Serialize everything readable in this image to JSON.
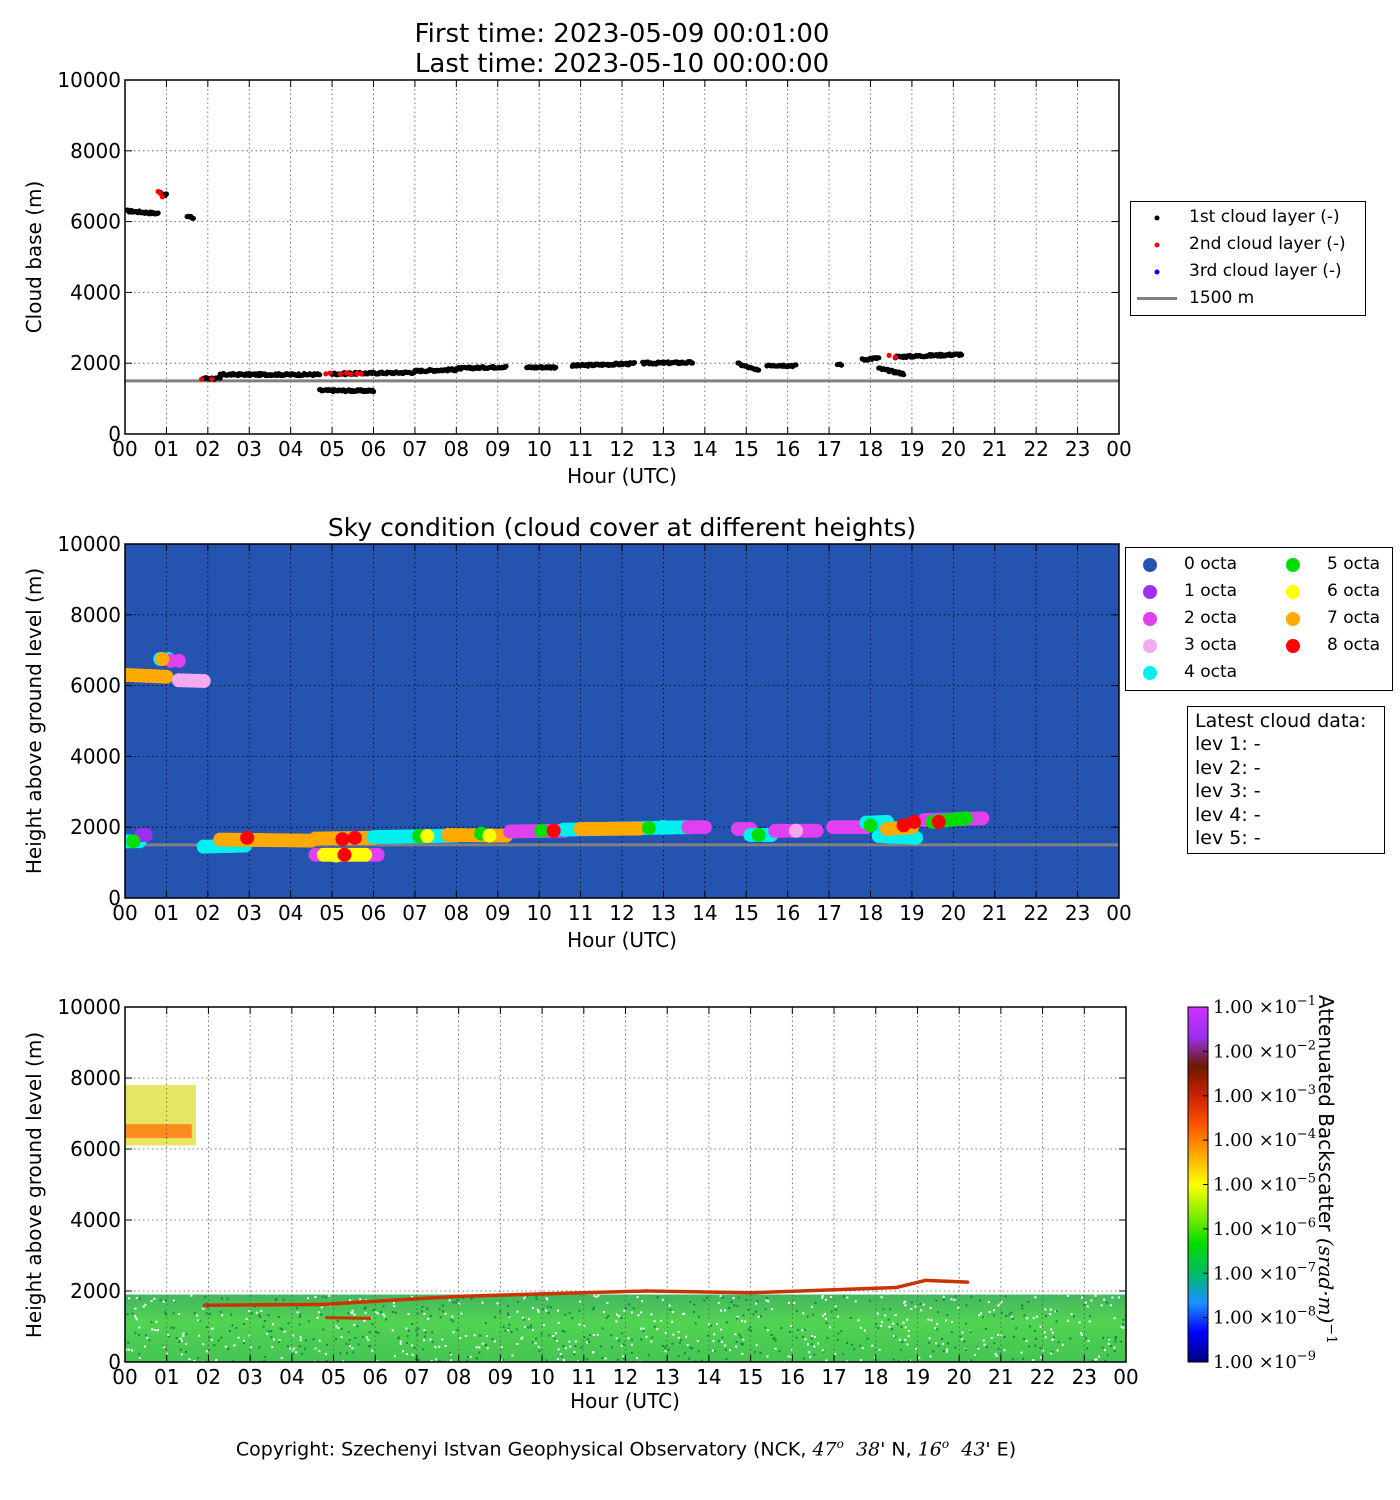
{
  "figure": {
    "title_line1": "First time: 2023-05-09 00:01:00",
    "title_line2": "Last time: 2023-05-10 00:00:00",
    "copyright": {
      "prefix": "Copyright: Szechenyi Istvan Geophysical Observatory (NCK, ",
      "lat_deg": "47",
      "lat_min": "38",
      "lon_deg": "16",
      "lon_min": "43",
      "deg_sym": "o",
      "lat_suffix": "' N, ",
      "lon_suffix": "' E)"
    }
  },
  "latest": {
    "title": "Latest cloud data:",
    "lines": [
      "lev 1: -",
      "lev 2: -",
      "lev 3: -",
      "lev 4: -",
      "lev 5: -"
    ]
  },
  "chart_data": [
    {
      "type": "scatter",
      "title": "",
      "xlabel": "Hour (UTC)",
      "ylabel": "Cloud base (m)",
      "x_ticks": [
        "00",
        "01",
        "02",
        "03",
        "04",
        "05",
        "06",
        "07",
        "08",
        "09",
        "10",
        "11",
        "12",
        "13",
        "14",
        "15",
        "16",
        "17",
        "18",
        "19",
        "20",
        "21",
        "22",
        "23",
        "00"
      ],
      "xlim": [
        0,
        24
      ],
      "ylim": [
        0,
        10000
      ],
      "y_ticks": [
        0,
        2000,
        4000,
        6000,
        8000,
        10000
      ],
      "grid": true,
      "legend_position": "right",
      "reference_line": {
        "name": "1500 m",
        "y": 1500,
        "color": "#808080"
      },
      "series": [
        {
          "name": "1st cloud layer (-)",
          "color": "#000000",
          "segments": [
            {
              "x0": 0.05,
              "x1": 0.8,
              "y0": 6300,
              "y1": 6230
            },
            {
              "x0": 0.85,
              "x1": 1.0,
              "y0": 6820,
              "y1": 6750
            },
            {
              "x0": 1.5,
              "x1": 1.65,
              "y0": 6150,
              "y1": 6100
            },
            {
              "x0": 1.9,
              "x1": 2.3,
              "y0": 1580,
              "y1": 1560
            },
            {
              "x0": 2.3,
              "x1": 4.7,
              "y0": 1680,
              "y1": 1680
            },
            {
              "x0": 4.7,
              "x1": 6.0,
              "y0": 1230,
              "y1": 1220
            },
            {
              "x0": 5.0,
              "x1": 7.0,
              "y0": 1700,
              "y1": 1740
            },
            {
              "x0": 7.0,
              "x1": 8.0,
              "y0": 1780,
              "y1": 1820
            },
            {
              "x0": 8.0,
              "x1": 9.2,
              "y0": 1850,
              "y1": 1900
            },
            {
              "x0": 9.7,
              "x1": 10.4,
              "y0": 1880,
              "y1": 1890
            },
            {
              "x0": 10.8,
              "x1": 12.3,
              "y0": 1930,
              "y1": 1990
            },
            {
              "x0": 12.5,
              "x1": 13.7,
              "y0": 2000,
              "y1": 2020
            },
            {
              "x0": 14.8,
              "x1": 15.3,
              "y0": 1990,
              "y1": 1780
            },
            {
              "x0": 15.5,
              "x1": 16.2,
              "y0": 1950,
              "y1": 1930
            },
            {
              "x0": 17.2,
              "x1": 17.3,
              "y0": 1970,
              "y1": 1970
            },
            {
              "x0": 17.8,
              "x1": 18.2,
              "y0": 2100,
              "y1": 2150
            },
            {
              "x0": 18.2,
              "x1": 18.8,
              "y0": 1850,
              "y1": 1700
            },
            {
              "x0": 18.6,
              "x1": 20.2,
              "y0": 2180,
              "y1": 2250
            }
          ]
        },
        {
          "name": "2nd cloud layer (-)",
          "color": "#ff0000",
          "points": [
            [
              0.8,
              6850
            ],
            [
              0.85,
              6800
            ],
            [
              0.9,
              6700
            ],
            [
              1.85,
              1550
            ],
            [
              2.1,
              1550
            ],
            [
              4.85,
              1700
            ],
            [
              4.95,
              1720
            ],
            [
              5.2,
              1700
            ],
            [
              5.35,
              1730
            ],
            [
              5.45,
              1690
            ],
            [
              5.6,
              1710
            ],
            [
              5.7,
              1700
            ],
            [
              18.45,
              2220
            ],
            [
              18.6,
              2170
            ]
          ]
        },
        {
          "name": "3rd cloud layer (-)",
          "color": "#0000ff",
          "points": []
        }
      ]
    },
    {
      "type": "scatter",
      "title": "Sky condition (cloud cover at different heights)",
      "xlabel": "Hour (UTC)",
      "ylabel": "Height above ground level (m)",
      "x_ticks": [
        "00",
        "01",
        "02",
        "03",
        "04",
        "05",
        "06",
        "07",
        "08",
        "09",
        "10",
        "11",
        "12",
        "13",
        "14",
        "15",
        "16",
        "17",
        "18",
        "19",
        "20",
        "21",
        "22",
        "23",
        "00"
      ],
      "xlim": [
        0,
        24
      ],
      "ylim": [
        0,
        10000
      ],
      "y_ticks": [
        0,
        2000,
        4000,
        6000,
        8000,
        10000
      ],
      "background": "#2554b0",
      "grid": true,
      "legend_position": "right",
      "reference_line": {
        "y": 1500,
        "color": "#808080"
      },
      "categories": [
        {
          "name": "0 octa",
          "color": "#2554b0"
        },
        {
          "name": "1 octa",
          "color": "#9b30f0"
        },
        {
          "name": "2 octa",
          "color": "#e040f0"
        },
        {
          "name": "3 octa",
          "color": "#f5aaf0"
        },
        {
          "name": "4 octa",
          "color": "#00f0f0"
        },
        {
          "name": "5 octa",
          "color": "#00dd00"
        },
        {
          "name": "6 octa",
          "color": "#ffff00"
        },
        {
          "name": "7 octa",
          "color": "#ffaa00"
        },
        {
          "name": "8 octa",
          "color": "#ff0000"
        }
      ],
      "segments": [
        {
          "x0": 0.05,
          "x1": 0.35,
          "y0": 1600,
          "y1": 1600,
          "octa": "4 octa"
        },
        {
          "x0": 0.4,
          "x1": 0.5,
          "y0": 1780,
          "y1": 1780,
          "octa": "1 octa"
        },
        {
          "x0": 0.05,
          "x1": 1.0,
          "y0": 6300,
          "y1": 6250,
          "octa": "7 octa"
        },
        {
          "x0": 0.85,
          "x1": 1.05,
          "y0": 6750,
          "y1": 6750,
          "octa": "4 octa"
        },
        {
          "x0": 1.1,
          "x1": 1.3,
          "y0": 6700,
          "y1": 6700,
          "octa": "2 octa"
        },
        {
          "x0": 1.3,
          "x1": 1.9,
          "y0": 6150,
          "y1": 6130,
          "octa": "3 octa"
        },
        {
          "x0": 1.9,
          "x1": 2.9,
          "y0": 1450,
          "y1": 1480,
          "octa": "4 octa"
        },
        {
          "x0": 2.3,
          "x1": 4.5,
          "y0": 1650,
          "y1": 1620,
          "octa": "7 octa"
        },
        {
          "x0": 4.6,
          "x1": 6.1,
          "y0": 1220,
          "y1": 1220,
          "octa": "2 octa"
        },
        {
          "x0": 4.8,
          "x1": 5.8,
          "y0": 1220,
          "y1": 1220,
          "octa": "6 octa"
        },
        {
          "x0": 4.6,
          "x1": 6.0,
          "y0": 1680,
          "y1": 1700,
          "octa": "7 octa"
        },
        {
          "x0": 6.0,
          "x1": 8.0,
          "y0": 1720,
          "y1": 1760,
          "octa": "4 octa"
        },
        {
          "x0": 7.8,
          "x1": 9.2,
          "y0": 1780,
          "y1": 1760,
          "octa": "7 octa"
        },
        {
          "x0": 9.3,
          "x1": 10.6,
          "y0": 1880,
          "y1": 1900,
          "octa": "2 octa"
        },
        {
          "x0": 10.6,
          "x1": 13.6,
          "y0": 1930,
          "y1": 2000,
          "octa": "4 octa"
        },
        {
          "x0": 11.0,
          "x1": 12.4,
          "y0": 1950,
          "y1": 1960,
          "octa": "7 octa"
        },
        {
          "x0": 13.6,
          "x1": 14.0,
          "y0": 2000,
          "y1": 2000,
          "octa": "2 octa"
        },
        {
          "x0": 14.8,
          "x1": 15.1,
          "y0": 1950,
          "y1": 1950,
          "octa": "2 octa"
        },
        {
          "x0": 15.1,
          "x1": 15.6,
          "y0": 1780,
          "y1": 1780,
          "octa": "4 octa"
        },
        {
          "x0": 15.7,
          "x1": 16.7,
          "y0": 1900,
          "y1": 1900,
          "octa": "2 octa"
        },
        {
          "x0": 17.1,
          "x1": 17.9,
          "y0": 2000,
          "y1": 2000,
          "octa": "2 octa"
        },
        {
          "x0": 17.9,
          "x1": 18.4,
          "y0": 2130,
          "y1": 2150,
          "octa": "4 octa"
        },
        {
          "x0": 18.2,
          "x1": 19.1,
          "y0": 1750,
          "y1": 1700,
          "octa": "4 octa"
        },
        {
          "x0": 18.4,
          "x1": 19.0,
          "y0": 1950,
          "y1": 2000,
          "octa": "7 octa"
        },
        {
          "x0": 19.3,
          "x1": 20.7,
          "y0": 2200,
          "y1": 2250,
          "octa": "2 octa"
        },
        {
          "x0": 19.5,
          "x1": 20.3,
          "y0": 2150,
          "y1": 2250,
          "octa": "5 octa"
        }
      ],
      "points": [
        {
          "x": 0.2,
          "y": 1600,
          "octa": "5 octa"
        },
        {
          "x": 0.9,
          "y": 6750,
          "octa": "7 octa"
        },
        {
          "x": 2.95,
          "y": 1700,
          "octa": "8 octa"
        },
        {
          "x": 5.1,
          "y": 1200,
          "octa": "6 octa"
        },
        {
          "x": 5.3,
          "y": 1220,
          "octa": "8 octa"
        },
        {
          "x": 5.25,
          "y": 1660,
          "octa": "8 octa"
        },
        {
          "x": 5.55,
          "y": 1700,
          "octa": "8 octa"
        },
        {
          "x": 7.1,
          "y": 1750,
          "octa": "5 octa"
        },
        {
          "x": 7.3,
          "y": 1750,
          "octa": "6 octa"
        },
        {
          "x": 8.6,
          "y": 1820,
          "octa": "5 octa"
        },
        {
          "x": 8.8,
          "y": 1760,
          "octa": "6 octa"
        },
        {
          "x": 10.05,
          "y": 1900,
          "octa": "5 octa"
        },
        {
          "x": 10.35,
          "y": 1900,
          "octa": "8 octa"
        },
        {
          "x": 12.65,
          "y": 1980,
          "octa": "5 octa"
        },
        {
          "x": 13.0,
          "y": 2010,
          "octa": "4 octa"
        },
        {
          "x": 15.3,
          "y": 1780,
          "octa": "5 octa"
        },
        {
          "x": 16.2,
          "y": 1900,
          "octa": "3 octa"
        },
        {
          "x": 18.0,
          "y": 2050,
          "octa": "5 octa"
        },
        {
          "x": 18.8,
          "y": 2050,
          "octa": "8 octa"
        },
        {
          "x": 19.05,
          "y": 2150,
          "octa": "8 octa"
        },
        {
          "x": 19.65,
          "y": 2150,
          "octa": "8 octa"
        }
      ]
    },
    {
      "type": "heatmap",
      "title": "",
      "xlabel": "Hour (UTC)",
      "ylabel": "Height above ground level (m)",
      "x_ticks": [
        "00",
        "01",
        "02",
        "03",
        "04",
        "05",
        "06",
        "07",
        "08",
        "09",
        "10",
        "11",
        "12",
        "13",
        "14",
        "15",
        "16",
        "17",
        "18",
        "19",
        "20",
        "21",
        "22",
        "23",
        "00"
      ],
      "xlim": [
        0,
        24
      ],
      "ylim": [
        0,
        10000
      ],
      "y_ticks": [
        0,
        2000,
        4000,
        6000,
        8000,
        10000
      ],
      "colorbar": {
        "label": "Attenuated Backscatter (srad·m)",
        "label_plain": "Attenuated Backscatter ",
        "label_unit": "(srad·m)",
        "label_exp": "−1",
        "scale": "log",
        "mantissa": "1.00",
        "times": "×10",
        "tick_exponents": [
          "−9",
          "−8",
          "−7",
          "−6",
          "−5",
          "−4",
          "−3",
          "−2",
          "−1"
        ],
        "colors": [
          "#000080",
          "#0000ff",
          "#1e90ff",
          "#00bb66",
          "#00dd00",
          "#88ee00",
          "#ffff00",
          "#ffaa00",
          "#ff5500",
          "#cc2200",
          "#6a1a00",
          "#9b30f0",
          "#cc33ff"
        ]
      },
      "layers": [
        {
          "name": "boundary layer",
          "x0": 0,
          "x1": 24,
          "y0": 0,
          "y1": 1900
        },
        {
          "name": "cloud base",
          "segments": [
            [
              1.9,
              1600
            ],
            [
              4.7,
              1620
            ],
            [
              8.0,
              1850
            ],
            [
              12.5,
              2000
            ],
            [
              15.0,
              1950
            ],
            [
              18.5,
              2100
            ],
            [
              19.2,
              2300
            ],
            [
              20.2,
              2250
            ]
          ]
        },
        {
          "name": "cloud base low",
          "segments": [
            [
              4.8,
              1250
            ],
            [
              5.9,
              1230
            ]
          ]
        },
        {
          "name": "upper cloud",
          "x0": 0,
          "x1": 1.7,
          "y0": 6100,
          "y1": 7800
        }
      ]
    }
  ]
}
